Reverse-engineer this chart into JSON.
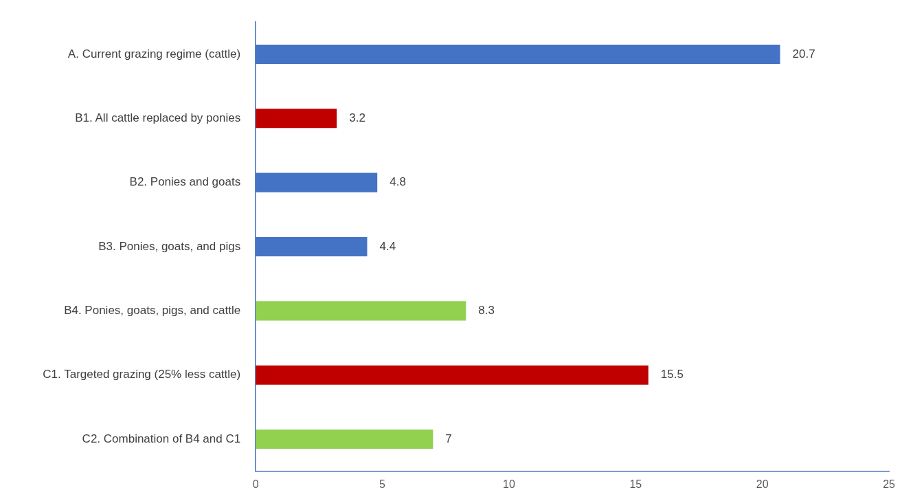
{
  "chart_data": {
    "type": "bar",
    "orientation": "horizontal",
    "categories": [
      "A. Current grazing regime (cattle)",
      "B1. All cattle replaced by ponies",
      "B2. Ponies and goats",
      "B3. Ponies, goats, and pigs",
      "B4. Ponies, goats, pigs, and cattle",
      "C1. Targeted grazing (25% less cattle)",
      "C2. Combination of B4 and C1"
    ],
    "values": [
      20.7,
      3.2,
      4.8,
      4.4,
      8.3,
      15.5,
      7
    ],
    "colors": [
      "#4472c4",
      "#c00000",
      "#4472c4",
      "#4472c4",
      "#92d050",
      "#c00000",
      "#92d050"
    ],
    "xlim": [
      0,
      25
    ],
    "xticks": [
      0,
      5,
      10,
      15,
      20,
      25
    ],
    "grid": false,
    "legend": false,
    "data_labels": true
  }
}
